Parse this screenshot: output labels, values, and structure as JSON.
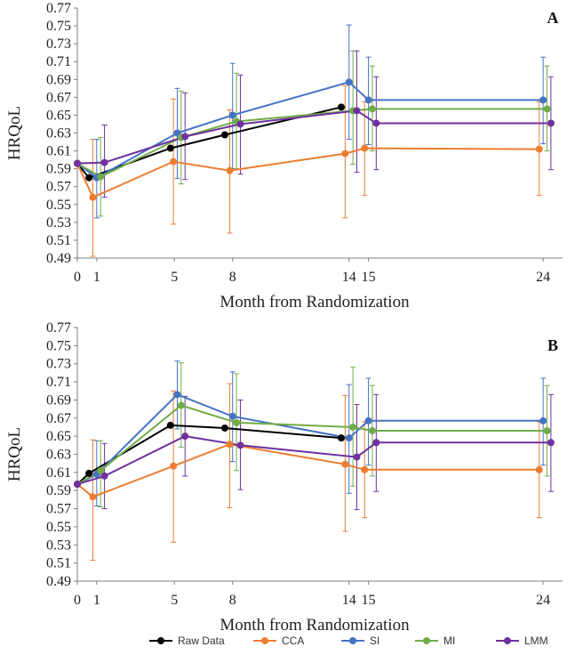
{
  "chart_data": [
    {
      "type": "line",
      "panel_label": "A",
      "xlabel": "Month from Randomization",
      "ylabel": "HRQoL",
      "ylim": [
        0.49,
        0.77
      ],
      "yticks": [
        0.49,
        0.51,
        0.53,
        0.55,
        0.57,
        0.59,
        0.61,
        0.63,
        0.65,
        0.67,
        0.69,
        0.71,
        0.73,
        0.75,
        0.77
      ],
      "ytick_labels": [
        "0.49",
        "0.51",
        "0.53",
        "0.55",
        "0.57",
        "0.59",
        "0.61",
        "0.63",
        "0.65",
        "0.67",
        "0.69",
        "0.71",
        "0.73",
        "0.75",
        "0.77"
      ],
      "xticks": [
        0,
        1,
        5,
        8,
        14,
        15,
        24
      ],
      "xtick_labels": [
        "0",
        "1",
        "5",
        "8",
        "14",
        "15",
        "24"
      ],
      "grid": false,
      "series": [
        {
          "name": "Raw Data",
          "color": "#000000",
          "points": [
            {
              "x": 0,
              "y": 0.596
            },
            {
              "x": 0.6,
              "y": 0.58
            },
            {
              "x": 4.8,
              "y": 0.613
            },
            {
              "x": 7.6,
              "y": 0.628
            },
            {
              "x": 13.6,
              "y": 0.659
            }
          ]
        },
        {
          "name": "CCA",
          "color": "#ed7d31",
          "points": [
            {
              "x": 0,
              "y": 0.596
            },
            {
              "x": 0.8,
              "y": 0.558,
              "lo": 0.492,
              "hi": 0.623
            },
            {
              "x": 4.95,
              "y": 0.598,
              "lo": 0.528,
              "hi": 0.668
            },
            {
              "x": 7.85,
              "y": 0.588,
              "lo": 0.518,
              "hi": 0.656
            },
            {
              "x": 13.8,
              "y": 0.607,
              "lo": 0.535,
              "hi": 0.683
            },
            {
              "x": 14.8,
              "y": 0.613,
              "lo": 0.56,
              "hi": 0.665
            },
            {
              "x": 23.8,
              "y": 0.612,
              "lo": 0.56,
              "hi": 0.665
            }
          ]
        },
        {
          "name": "SI",
          "color": "#4472c4",
          "points": [
            {
              "x": 0,
              "y": 0.596
            },
            {
              "x": 1.0,
              "y": 0.58,
              "lo": 0.535,
              "hi": 0.623
            },
            {
              "x": 5.15,
              "y": 0.63,
              "lo": 0.579,
              "hi": 0.68
            },
            {
              "x": 8.0,
              "y": 0.65,
              "lo": 0.59,
              "hi": 0.708
            },
            {
              "x": 14.0,
              "y": 0.687,
              "lo": 0.623,
              "hi": 0.751
            },
            {
              "x": 15.0,
              "y": 0.667,
              "lo": 0.617,
              "hi": 0.715
            },
            {
              "x": 24.0,
              "y": 0.667,
              "lo": 0.618,
              "hi": 0.715
            }
          ]
        },
        {
          "name": "MI",
          "color": "#70ad47",
          "points": [
            {
              "x": 0,
              "y": 0.596
            },
            {
              "x": 1.2,
              "y": 0.581,
              "lo": 0.537,
              "hi": 0.625
            },
            {
              "x": 5.35,
              "y": 0.625,
              "lo": 0.573,
              "hi": 0.677
            },
            {
              "x": 8.2,
              "y": 0.643,
              "lo": 0.59,
              "hi": 0.697
            },
            {
              "x": 14.2,
              "y": 0.655,
              "lo": 0.595,
              "hi": 0.722
            },
            {
              "x": 15.2,
              "y": 0.657,
              "lo": 0.61,
              "hi": 0.705
            },
            {
              "x": 24.2,
              "y": 0.657,
              "lo": 0.61,
              "hi": 0.705
            }
          ]
        },
        {
          "name": "LMM",
          "color": "#7030a0",
          "points": [
            {
              "x": 0,
              "y": 0.596
            },
            {
              "x": 1.4,
              "y": 0.597,
              "lo": 0.558,
              "hi": 0.639
            },
            {
              "x": 5.55,
              "y": 0.626,
              "lo": 0.578,
              "hi": 0.675
            },
            {
              "x": 8.4,
              "y": 0.64,
              "lo": 0.584,
              "hi": 0.695
            },
            {
              "x": 14.4,
              "y": 0.655,
              "lo": 0.586,
              "hi": 0.722
            },
            {
              "x": 15.4,
              "y": 0.641,
              "lo": 0.589,
              "hi": 0.693
            },
            {
              "x": 24.4,
              "y": 0.641,
              "lo": 0.589,
              "hi": 0.693
            }
          ]
        }
      ]
    },
    {
      "type": "line",
      "panel_label": "B",
      "xlabel": "Month from Randomization",
      "ylabel": "HRQoL",
      "ylim": [
        0.49,
        0.77
      ],
      "yticks": [
        0.49,
        0.51,
        0.53,
        0.55,
        0.57,
        0.59,
        0.61,
        0.63,
        0.65,
        0.67,
        0.69,
        0.71,
        0.73,
        0.75,
        0.77
      ],
      "ytick_labels": [
        "0.49",
        "0.51",
        "0.53",
        "0.55",
        "0.57",
        "0.59",
        "0.61",
        "0.63",
        "0.65",
        "0.67",
        "0.69",
        "0.71",
        "0.73",
        "0.75",
        "0.77"
      ],
      "xticks": [
        0,
        1,
        5,
        8,
        14,
        15,
        24
      ],
      "xtick_labels": [
        "0",
        "1",
        "5",
        "8",
        "14",
        "15",
        "24"
      ],
      "grid": false,
      "series": [
        {
          "name": "Raw Data",
          "color": "#000000",
          "points": [
            {
              "x": 0,
              "y": 0.597
            },
            {
              "x": 0.6,
              "y": 0.609
            },
            {
              "x": 4.8,
              "y": 0.662
            },
            {
              "x": 7.6,
              "y": 0.659
            },
            {
              "x": 13.6,
              "y": 0.648
            }
          ]
        },
        {
          "name": "CCA",
          "color": "#ed7d31",
          "points": [
            {
              "x": 0,
              "y": 0.597
            },
            {
              "x": 0.8,
              "y": 0.583,
              "lo": 0.513,
              "hi": 0.646
            },
            {
              "x": 4.95,
              "y": 0.617,
              "lo": 0.533,
              "hi": 0.7
            },
            {
              "x": 7.85,
              "y": 0.641,
              "lo": 0.571,
              "hi": 0.708
            },
            {
              "x": 13.8,
              "y": 0.619,
              "lo": 0.545,
              "hi": 0.695
            },
            {
              "x": 14.8,
              "y": 0.613,
              "lo": 0.56,
              "hi": 0.666
            },
            {
              "x": 23.8,
              "y": 0.613,
              "lo": 0.56,
              "hi": 0.666
            }
          ]
        },
        {
          "name": "SI",
          "color": "#4472c4",
          "points": [
            {
              "x": 0,
              "y": 0.597
            },
            {
              "x": 1.0,
              "y": 0.608,
              "lo": 0.573,
              "hi": 0.645
            },
            {
              "x": 5.15,
              "y": 0.696,
              "lo": 0.658,
              "hi": 0.733
            },
            {
              "x": 8.0,
              "y": 0.672,
              "lo": 0.622,
              "hi": 0.721
            },
            {
              "x": 14.0,
              "y": 0.648,
              "lo": 0.587,
              "hi": 0.707
            },
            {
              "x": 15.0,
              "y": 0.667,
              "lo": 0.618,
              "hi": 0.714
            },
            {
              "x": 24.0,
              "y": 0.667,
              "lo": 0.618,
              "hi": 0.714
            }
          ]
        },
        {
          "name": "MI",
          "color": "#70ad47",
          "points": [
            {
              "x": 0,
              "y": 0.597
            },
            {
              "x": 1.2,
              "y": 0.612,
              "lo": 0.572,
              "hi": 0.645
            },
            {
              "x": 5.35,
              "y": 0.684,
              "lo": 0.638,
              "hi": 0.731
            },
            {
              "x": 8.2,
              "y": 0.665,
              "lo": 0.612,
              "hi": 0.719
            },
            {
              "x": 14.2,
              "y": 0.66,
              "lo": 0.595,
              "hi": 0.726
            },
            {
              "x": 15.2,
              "y": 0.656,
              "lo": 0.606,
              "hi": 0.706
            },
            {
              "x": 24.2,
              "y": 0.656,
              "lo": 0.606,
              "hi": 0.706
            }
          ]
        },
        {
          "name": "LMM",
          "color": "#7030a0",
          "points": [
            {
              "x": 0,
              "y": 0.597
            },
            {
              "x": 1.4,
              "y": 0.606,
              "lo": 0.57,
              "hi": 0.642
            },
            {
              "x": 5.55,
              "y": 0.65,
              "lo": 0.606,
              "hi": 0.694
            },
            {
              "x": 8.4,
              "y": 0.64,
              "lo": 0.591,
              "hi": 0.69
            },
            {
              "x": 14.4,
              "y": 0.627,
              "lo": 0.569,
              "hi": 0.685
            },
            {
              "x": 15.4,
              "y": 0.643,
              "lo": 0.589,
              "hi": 0.696
            },
            {
              "x": 24.4,
              "y": 0.643,
              "lo": 0.589,
              "hi": 0.696
            }
          ]
        }
      ]
    }
  ],
  "legend": {
    "items": [
      {
        "label": "Raw Data",
        "color": "#000000"
      },
      {
        "label": "CCA",
        "color": "#ed7d31"
      },
      {
        "label": "SI",
        "color": "#4472c4"
      },
      {
        "label": "MI",
        "color": "#70ad47"
      },
      {
        "label": "LMM",
        "color": "#7030a0"
      }
    ]
  }
}
